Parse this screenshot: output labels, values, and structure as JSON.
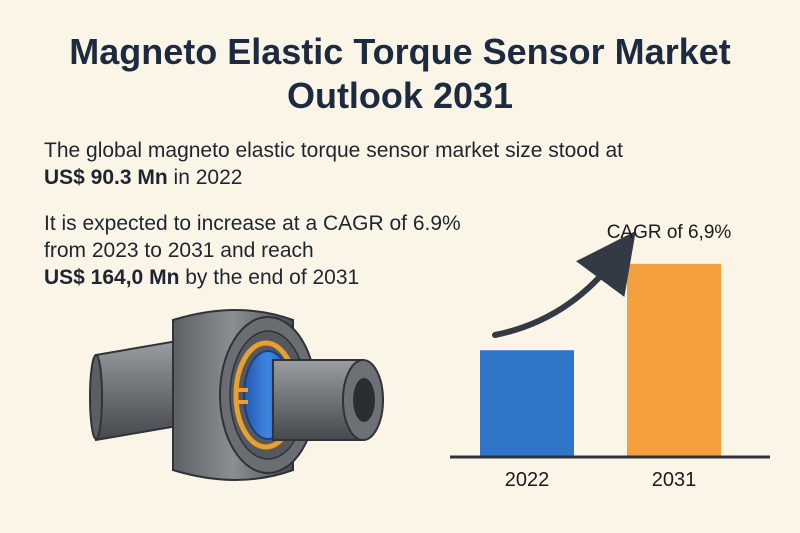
{
  "title": {
    "line1": "Magneto Elastic Torque Sensor Market",
    "line2": "Outlook 2031"
  },
  "intro": {
    "line1": "The global magneto elastic torque sensor market size stood at",
    "value": "US$ 90.3 Mn",
    "line2_suffix": " in 2022"
  },
  "forecast": {
    "line1": "It is expected to increase at a CAGR of 6.9%",
    "line2": "from 2023 to 2031 and reach",
    "value": "US$ 164,0 Mn",
    "line3_suffix": " by the end of 2031"
  },
  "illustration": {
    "icon": "torque-sensor-shaft-icon",
    "colors": {
      "shaft": "#6e7277",
      "ring": "#2f6fd0",
      "coil": "#e8a030"
    }
  },
  "chart_data": {
    "type": "bar",
    "categories": [
      "2022",
      "2031"
    ],
    "values": [
      90.3,
      164.0
    ],
    "colors": [
      "#2f76c9",
      "#f4a03e"
    ],
    "annotation": "CAGR of 6,9%",
    "arrow": "curved-up-arrow-icon",
    "ylim": [
      0,
      175
    ],
    "grid": false
  }
}
